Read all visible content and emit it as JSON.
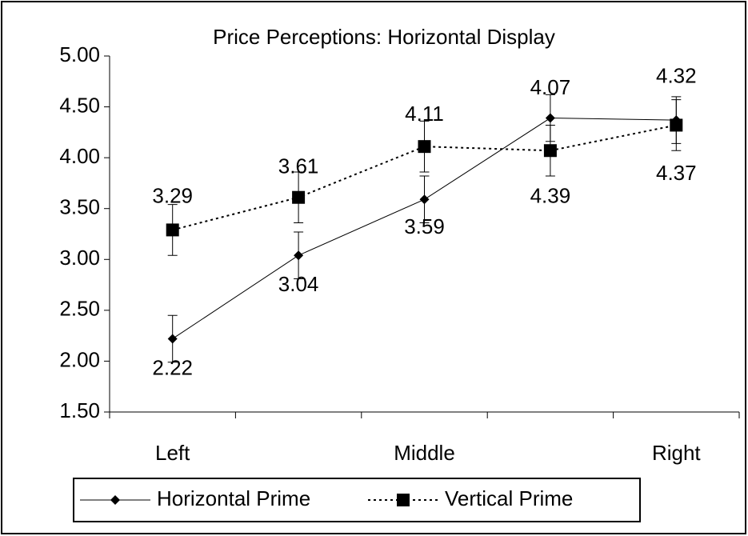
{
  "chart_data": {
    "type": "line",
    "title": "Price Perceptions: Horizontal Display",
    "categories": [
      "Left",
      null,
      "Middle",
      null,
      "Right"
    ],
    "series": [
      {
        "name": "Horizontal Prime",
        "color": "#000000",
        "marker": "diamond",
        "dashed": false,
        "values": [
          2.22,
          3.04,
          3.59,
          4.39,
          4.37
        ],
        "errors": [
          0.23,
          0.23,
          0.23,
          0.23,
          0.23
        ]
      },
      {
        "name": "Vertical Prime",
        "color": "#000000",
        "marker": "square",
        "dashed": true,
        "values": [
          3.29,
          3.61,
          4.11,
          4.07,
          4.32
        ],
        "errors": [
          0.25,
          0.25,
          0.25,
          0.25,
          0.25
        ]
      }
    ],
    "ylim": [
      1.5,
      5.0
    ],
    "yticks": [
      {
        "value": 1.5,
        "label": "1.50"
      },
      {
        "value": 2.0,
        "label": "2.00"
      },
      {
        "value": 2.5,
        "label": "2.50"
      },
      {
        "value": 3.0,
        "label": "3.00"
      },
      {
        "value": 3.5,
        "label": "3.50"
      },
      {
        "value": 4.0,
        "label": "4.00"
      },
      {
        "value": 4.5,
        "label": "4.50"
      },
      {
        "value": 5.0,
        "label": "5.00"
      }
    ],
    "grid": false,
    "legend": "bottom"
  }
}
